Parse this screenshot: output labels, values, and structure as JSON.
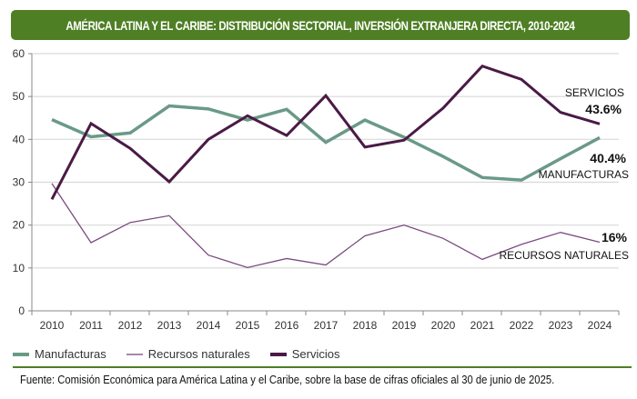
{
  "title": "AMÉRICA LATINA Y EL CARIBE: DISTRIBUCIÓN SECTORIAL, INVERSIÓN EXTRANJERA DIRECTA, 2010-2024",
  "source": "Fuente: Comisión Económica para América Latina y el Caribe, sobre la base de cifras oficiales al 30 de junio de 2025.",
  "chart_data": {
    "type": "line",
    "title": "AMÉRICA LATINA Y EL CARIBE: DISTRIBUCIÓN SECTORIAL, INVERSIÓN EXTRANJERA DIRECTA, 2010-2024",
    "xlabel": "",
    "ylabel": "",
    "x": [
      "2010",
      "2011",
      "2012",
      "2013",
      "2014",
      "2015",
      "2016",
      "2017",
      "2018",
      "2019",
      "2020",
      "2021",
      "2022",
      "2023",
      "2024"
    ],
    "yticks": [
      0,
      10,
      20,
      30,
      40,
      50,
      60
    ],
    "ylim": [
      0,
      60
    ],
    "grid": true,
    "legend_position": "bottom-left",
    "series": [
      {
        "name": "Manufacturas",
        "color": "#6a9a87",
        "values": [
          44.6,
          40.6,
          41.5,
          47.8,
          47.1,
          44.5,
          47.0,
          39.3,
          44.5,
          40.5,
          36.0,
          31.1,
          30.5,
          35.5,
          40.4
        ]
      },
      {
        "name": "Recursos naturales",
        "color": "#7b4a80",
        "values": [
          29.7,
          15.9,
          20.6,
          22.2,
          13.0,
          10.1,
          12.2,
          10.7,
          17.5,
          20.0,
          16.9,
          12.0,
          15.5,
          18.3,
          16.0
        ]
      },
      {
        "name": "Servicios",
        "color": "#4a1a45",
        "values": [
          26.0,
          43.7,
          37.9,
          30.1,
          40.0,
          45.5,
          40.9,
          50.2,
          38.2,
          39.8,
          47.3,
          57.1,
          54.0,
          46.3,
          43.6
        ]
      }
    ],
    "annotations": [
      {
        "series": "Servicios",
        "label": "SERVICIOS",
        "value": "43.6%"
      },
      {
        "series": "Manufacturas",
        "label": "MANUFACTURAS",
        "value": "40.4%"
      },
      {
        "series": "Recursos naturales",
        "label": "RECURSOS NATURALES",
        "value": "16%"
      }
    ]
  }
}
